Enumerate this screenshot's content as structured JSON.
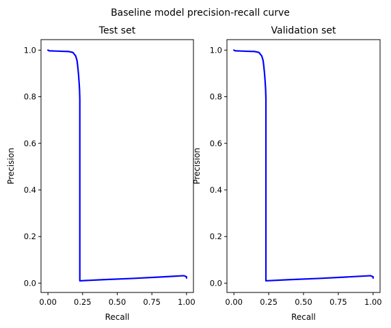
{
  "suptitle": "Baseline model precision-recall curve",
  "colors": {
    "curve": "#0000ff"
  },
  "chart_data": [
    {
      "type": "line",
      "title": "Test set",
      "xlabel": "Recall",
      "ylabel": "Precision",
      "xlim": [
        -0.05,
        1.05
      ],
      "ylim": [
        -0.04,
        1.045
      ],
      "xticks": [
        0.0,
        0.25,
        0.5,
        0.75,
        1.0
      ],
      "xtick_labels": [
        "0.00",
        "0.25",
        "0.50",
        "0.75",
        "1.00"
      ],
      "yticks": [
        0.0,
        0.2,
        0.4,
        0.6,
        0.8,
        1.0
      ],
      "ytick_labels": [
        "0.0",
        "0.2",
        "0.4",
        "0.6",
        "0.8",
        "1.0"
      ],
      "grid": false,
      "series": [
        {
          "x": [
            0.0,
            0.01,
            0.05,
            0.1,
            0.15,
            0.18,
            0.2,
            0.21,
            0.215,
            0.22,
            0.225,
            0.228,
            0.229,
            0.23,
            0.23,
            0.23,
            0.4,
            0.6,
            0.8,
            0.95,
            0.98,
            0.99,
            1.0,
            1.0
          ],
          "y": [
            1.0,
            0.997,
            0.996,
            0.995,
            0.994,
            0.99,
            0.975,
            0.955,
            0.93,
            0.9,
            0.86,
            0.83,
            0.81,
            0.79,
            0.22,
            0.01,
            0.015,
            0.02,
            0.026,
            0.031,
            0.032,
            0.03,
            0.027,
            0.022
          ]
        }
      ]
    },
    {
      "type": "line",
      "title": "Validation set",
      "xlabel": "Recall",
      "ylabel": "Precision",
      "xlim": [
        -0.05,
        1.05
      ],
      "ylim": [
        -0.04,
        1.045
      ],
      "xticks": [
        0.0,
        0.25,
        0.5,
        0.75,
        1.0
      ],
      "xtick_labels": [
        "0.00",
        "0.25",
        "0.50",
        "0.75",
        "1.00"
      ],
      "yticks": [
        0.0,
        0.2,
        0.4,
        0.6,
        0.8,
        1.0
      ],
      "ytick_labels": [
        "0.0",
        "0.2",
        "0.4",
        "0.6",
        "0.8",
        "1.0"
      ],
      "grid": false,
      "series": [
        {
          "x": [
            0.0,
            0.01,
            0.05,
            0.1,
            0.15,
            0.18,
            0.2,
            0.21,
            0.215,
            0.22,
            0.225,
            0.228,
            0.229,
            0.23,
            0.23,
            0.23,
            0.4,
            0.6,
            0.8,
            0.95,
            0.98,
            0.99,
            1.0,
            1.0
          ],
          "y": [
            1.0,
            0.997,
            0.996,
            0.995,
            0.994,
            0.99,
            0.975,
            0.955,
            0.93,
            0.9,
            0.86,
            0.83,
            0.81,
            0.79,
            0.22,
            0.01,
            0.015,
            0.02,
            0.026,
            0.031,
            0.032,
            0.03,
            0.027,
            0.022
          ]
        }
      ]
    }
  ]
}
